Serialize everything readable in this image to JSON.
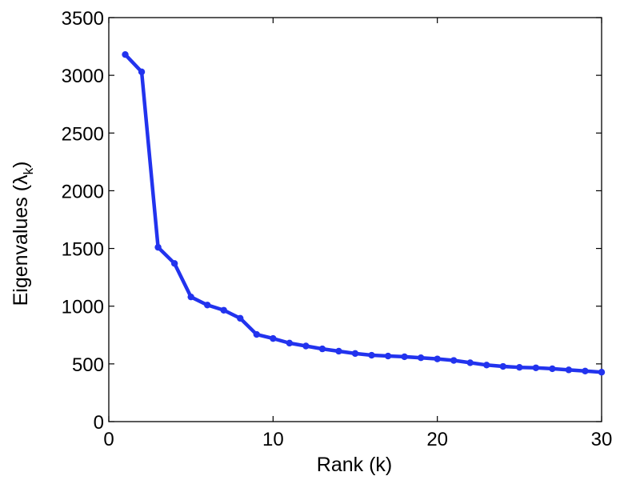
{
  "chart_data": {
    "type": "line",
    "title": "",
    "xlabel": "Rank (k)",
    "ylabel_parts": {
      "prefix": "Eigenvalues (",
      "symbol": "λ",
      "subscript": "k",
      "suffix": ")"
    },
    "xlim": [
      0,
      30
    ],
    "ylim": [
      0,
      3500
    ],
    "xticks": [
      0,
      10,
      20,
      30
    ],
    "yticks": [
      0,
      500,
      1000,
      1500,
      2000,
      2500,
      3000,
      3500
    ],
    "grid": false,
    "legend": "none",
    "colors": {
      "series": "#2233ee",
      "axes": "#000000",
      "background": "#ffffff"
    },
    "series": [
      {
        "marker": "circle",
        "x": [
          1,
          2,
          3,
          4,
          5,
          6,
          7,
          8,
          9,
          10,
          11,
          12,
          13,
          14,
          15,
          16,
          17,
          18,
          19,
          20,
          21,
          22,
          23,
          24,
          25,
          26,
          27,
          28,
          29,
          30
        ],
        "y": [
          3180,
          3030,
          1510,
          1370,
          1080,
          1010,
          965,
          895,
          755,
          720,
          680,
          655,
          630,
          610,
          590,
          575,
          568,
          562,
          553,
          543,
          530,
          510,
          490,
          478,
          470,
          466,
          458,
          448,
          438,
          428
        ]
      }
    ]
  }
}
